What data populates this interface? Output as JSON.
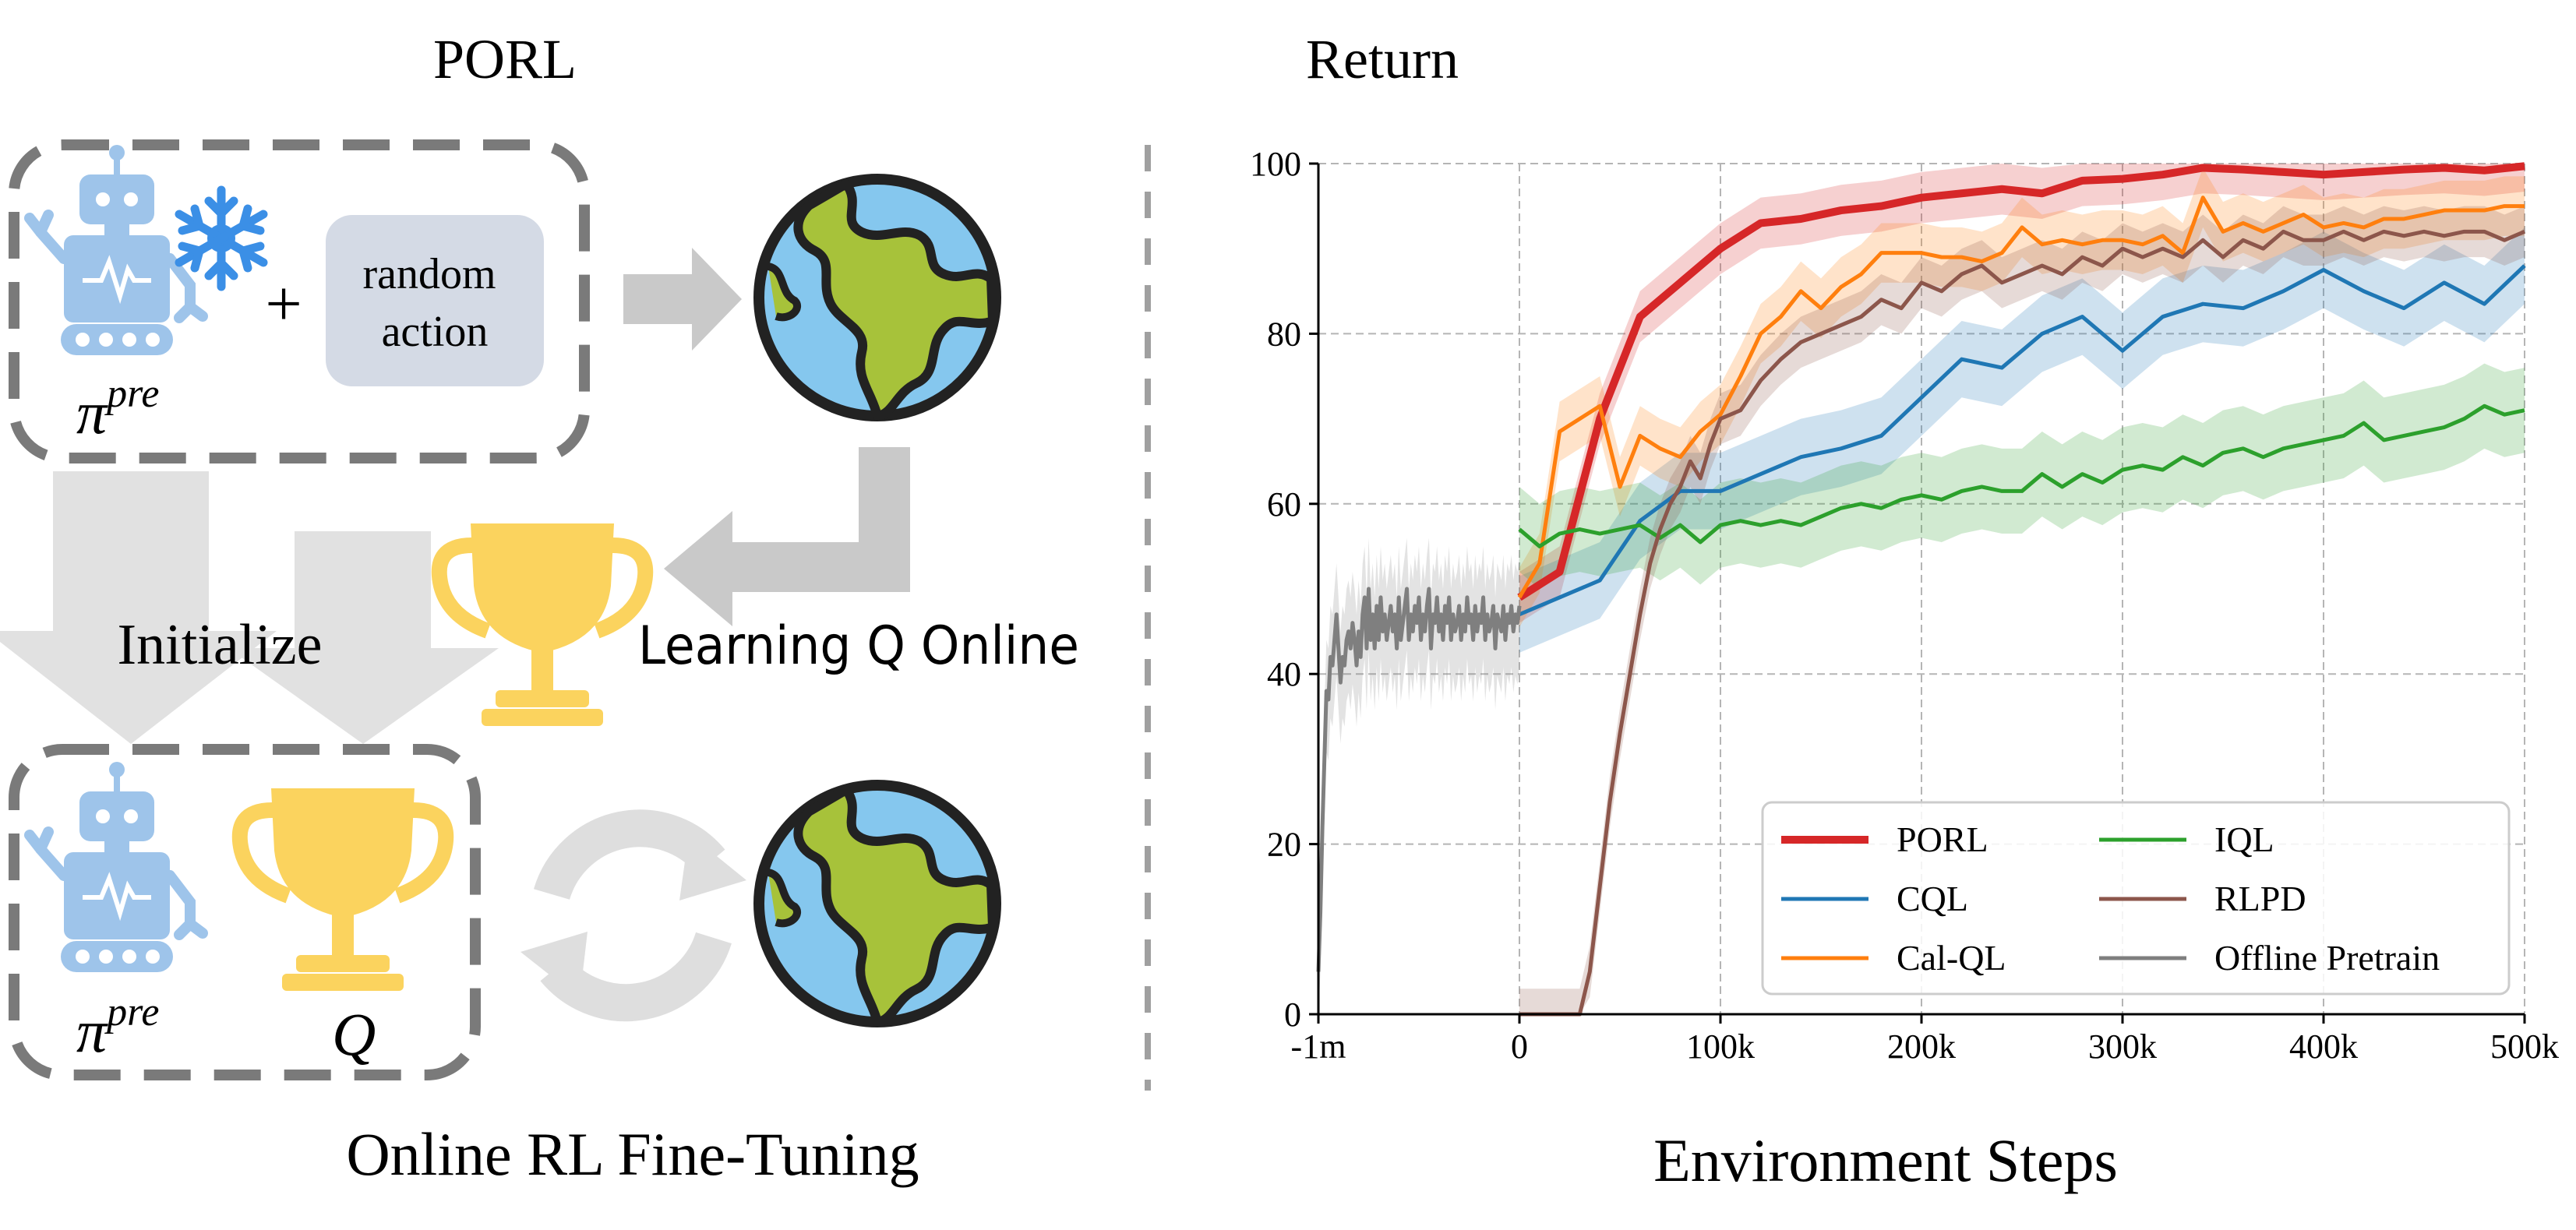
{
  "diagram": {
    "title": "PORL",
    "init_label": "Initialize",
    "learning_label": "Learning Q Online",
    "random_action": [
      "random",
      "action"
    ],
    "plus": "+",
    "pi_symbol": "π",
    "pre_superscript": "pre",
    "q_label": "Q",
    "bottom_label": "Online RL Fine-Tuning",
    "colors": {
      "robot": "#9ec4ea",
      "trophy": "#fbd35e",
      "globe_ocean": "#85c7ee",
      "globe_land": "#a7c23a",
      "outline": "#222222",
      "box_dash": "#7a7a7a",
      "arrow_grey": "#c9c9c9",
      "arrow_light": "#e1e1e1",
      "random_box": "#d4dae5",
      "snowflake": "#3b8fe6"
    },
    "icons": [
      "robot-icon",
      "snowflake-icon",
      "globe-icon",
      "trophy-icon",
      "cycle-icon"
    ]
  },
  "chart_data": {
    "type": "line",
    "title": "Return",
    "xlabel": "Environment Steps",
    "ylabel": "",
    "xticks": [
      "-1m",
      "0",
      "100k",
      "200k",
      "300k",
      "400k",
      "500k"
    ],
    "yticks": [
      "0",
      "20",
      "40",
      "60",
      "80",
      "100"
    ],
    "ylim": [
      0,
      100
    ],
    "x_offline_range": [
      "-1m",
      "0"
    ],
    "x_online_range_k": [
      0,
      500
    ],
    "grid": true,
    "legend_position": "bottom-right",
    "legend": [
      "PORL",
      "CQL",
      "Cal-QL",
      "IQL",
      "RLPD",
      "Offline Pretrain"
    ],
    "series": [
      {
        "name": "PORL",
        "color": "#d62728",
        "x": [
          0,
          20,
          40,
          60,
          80,
          100,
          120,
          140,
          160,
          180,
          200,
          220,
          240,
          260,
          280,
          300,
          320,
          340,
          360,
          380,
          400,
          420,
          440,
          460,
          480,
          500
        ],
        "y": [
          49,
          52,
          70,
          82,
          86,
          90,
          93,
          93.5,
          94.5,
          95,
          96,
          96.5,
          97,
          96.5,
          98,
          98.2,
          98.7,
          99.5,
          99.3,
          99,
          98.7,
          99,
          99.3,
          99.5,
          99.2,
          99.7
        ],
        "band": 3
      },
      {
        "name": "CQL",
        "color": "#1f77b4",
        "x": [
          0,
          20,
          40,
          60,
          80,
          100,
          120,
          140,
          160,
          180,
          200,
          220,
          240,
          260,
          280,
          300,
          320,
          340,
          360,
          380,
          400,
          420,
          440,
          460,
          480,
          500
        ],
        "y": [
          47,
          49,
          51,
          58,
          61.5,
          61.5,
          63.5,
          65.5,
          66.5,
          68,
          72.5,
          77,
          76,
          80,
          82,
          78,
          82,
          83.5,
          83,
          85,
          87.5,
          85,
          83,
          86,
          83.5,
          88
        ],
        "band": 4.5
      },
      {
        "name": "Cal-QL",
        "color": "#ff7f0e",
        "x": [
          0,
          10,
          20,
          30,
          40,
          50,
          60,
          70,
          80,
          90,
          100,
          110,
          120,
          130,
          140,
          150,
          160,
          170,
          180,
          190,
          200,
          210,
          220,
          230,
          240,
          250,
          260,
          270,
          280,
          290,
          300,
          310,
          320,
          330,
          340,
          350,
          360,
          370,
          380,
          390,
          400,
          410,
          420,
          430,
          440,
          450,
          460,
          470,
          480,
          490,
          500
        ],
        "y": [
          49,
          53,
          68.5,
          70,
          71.5,
          62,
          68,
          66.5,
          65.5,
          68.5,
          70.5,
          75,
          80,
          82,
          85,
          83,
          85.5,
          87,
          89.5,
          89.5,
          89.5,
          89,
          89,
          88.5,
          89.5,
          92.5,
          90.5,
          91,
          90.5,
          91,
          91,
          90.5,
          91.5,
          89.5,
          96,
          92,
          93,
          92,
          93,
          94,
          92.5,
          93,
          92.5,
          93.5,
          93.5,
          94,
          94.5,
          94.5,
          94.5,
          95,
          95
        ],
        "band": 3.5
      },
      {
        "name": "IQL",
        "color": "#2ca02c",
        "x": [
          0,
          10,
          20,
          30,
          40,
          50,
          60,
          70,
          80,
          90,
          100,
          110,
          120,
          130,
          140,
          150,
          160,
          170,
          180,
          190,
          200,
          210,
          220,
          230,
          240,
          250,
          260,
          270,
          280,
          290,
          300,
          310,
          320,
          330,
          340,
          350,
          360,
          370,
          380,
          390,
          400,
          410,
          420,
          430,
          440,
          450,
          460,
          470,
          480,
          490,
          500
        ],
        "y": [
          57,
          55,
          56.5,
          57,
          56.5,
          57,
          57.5,
          56,
          57.5,
          55.5,
          57.5,
          58,
          57.5,
          58,
          57.5,
          58.5,
          59.5,
          60,
          59.5,
          60.5,
          61,
          60.5,
          61.5,
          62,
          61.5,
          61.5,
          63.5,
          62,
          63.5,
          62.5,
          64,
          64.5,
          64,
          65.5,
          64.5,
          66,
          66.5,
          65.5,
          66.5,
          67,
          67.5,
          68,
          69.5,
          67.5,
          68,
          68.5,
          69,
          70,
          71.5,
          70.5,
          71
        ],
        "band": 5
      },
      {
        "name": "RLPD",
        "color": "#8c564b",
        "x": [
          0,
          10,
          20,
          30,
          35,
          40,
          45,
          50,
          55,
          60,
          65,
          70,
          75,
          80,
          85,
          90,
          95,
          100,
          110,
          120,
          130,
          140,
          150,
          160,
          170,
          180,
          190,
          200,
          210,
          220,
          230,
          240,
          250,
          260,
          270,
          280,
          290,
          300,
          310,
          320,
          330,
          340,
          350,
          360,
          370,
          380,
          390,
          400,
          410,
          420,
          430,
          440,
          450,
          460,
          470,
          480,
          490,
          500
        ],
        "y": [
          0,
          0,
          0,
          0,
          5,
          15,
          25,
          33,
          40,
          47,
          53,
          57,
          60,
          62,
          65,
          63,
          67,
          70,
          71,
          74.5,
          77,
          79,
          80,
          81,
          82,
          84,
          83,
          86,
          85,
          87,
          88,
          86,
          87,
          88,
          87,
          89,
          88,
          90,
          89,
          90,
          89,
          91,
          89,
          91,
          90,
          92,
          91,
          91,
          92,
          91,
          92,
          91.5,
          92,
          91.5,
          92,
          92,
          91,
          92
        ],
        "band": 3
      },
      {
        "name": "Offline Pretrain",
        "color": "#7f7f7f",
        "x": [
          0,
          0.01,
          0.02,
          0.03,
          0.04,
          0.05,
          0.06,
          0.07,
          0.08,
          0.09,
          0.1,
          0.11,
          0.12,
          0.13,
          0.14,
          0.15,
          0.16,
          0.17,
          0.18,
          0.19,
          0.2,
          0.21,
          0.22,
          0.23,
          0.24,
          0.25,
          0.26,
          0.27,
          0.28,
          0.29,
          0.3,
          0.31,
          0.32,
          0.33,
          0.34,
          0.35,
          0.36,
          0.37,
          0.38,
          0.39,
          0.4,
          0.41,
          0.42,
          0.43,
          0.44,
          0.45,
          0.46,
          0.47,
          0.48,
          0.49,
          0.5,
          0.51,
          0.52,
          0.53,
          0.54,
          0.55,
          0.56,
          0.57,
          0.58,
          0.59,
          0.6,
          0.61,
          0.62,
          0.63,
          0.64,
          0.65,
          0.66,
          0.67,
          0.68,
          0.69,
          0.7,
          0.71,
          0.72,
          0.73,
          0.74,
          0.75,
          0.76,
          0.77,
          0.78,
          0.79,
          0.8,
          0.81,
          0.82,
          0.83,
          0.84,
          0.85,
          0.86,
          0.87,
          0.88,
          0.89,
          0.9,
          0.91,
          0.92,
          0.93,
          0.94,
          0.95,
          0.96,
          0.97,
          0.98,
          0.99,
          1.0
        ],
        "y": [
          5,
          12,
          22,
          30,
          38,
          37,
          42,
          41,
          44,
          47,
          43,
          39,
          42,
          41,
          44,
          45,
          43,
          46,
          44,
          41,
          45,
          42,
          47,
          49,
          43,
          50,
          44,
          47,
          43,
          48,
          44,
          49,
          45,
          47,
          44,
          46,
          48,
          45,
          47,
          43,
          49,
          44,
          46,
          48,
          50,
          44,
          47,
          45,
          48,
          46,
          49,
          44,
          47,
          45,
          48,
          50,
          43,
          47,
          46,
          49,
          45,
          47,
          44,
          48,
          46,
          49,
          44,
          47,
          45,
          46,
          48,
          44,
          47,
          45,
          49,
          46,
          47,
          44,
          48,
          45,
          47,
          46,
          49,
          44,
          47,
          45,
          46,
          48,
          43,
          47,
          46,
          45,
          48,
          44,
          47,
          46,
          48,
          45,
          47,
          46,
          48
        ],
        "band": 6
      }
    ]
  }
}
